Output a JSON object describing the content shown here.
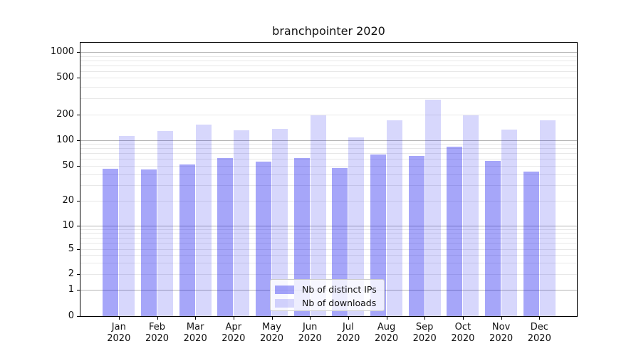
{
  "title": "branchpointer 2020",
  "chart_data": {
    "type": "bar",
    "title": "branchpointer 2020",
    "categories": [
      "Jan 2020",
      "Feb 2020",
      "Mar 2020",
      "Apr 2020",
      "May 2020",
      "Jun 2020",
      "Jul 2020",
      "Aug 2020",
      "Sep 2020",
      "Oct 2020",
      "Nov 2020",
      "Dec 2020"
    ],
    "month_labels": [
      "Jan",
      "Feb",
      "Mar",
      "Apr",
      "May",
      "Jun",
      "Jul",
      "Aug",
      "Sep",
      "Oct",
      "Nov",
      "Dec"
    ],
    "year_label": "2020",
    "series": [
      {
        "name": "Nb of distinct IPs",
        "color": "#a6a6f6",
        "values": [
          46,
          45,
          52,
          62,
          56,
          62,
          47,
          68,
          65,
          84,
          57,
          43
        ]
      },
      {
        "name": "Nb of downloads",
        "color": "#d9d9fb",
        "values": [
          112,
          127,
          152,
          131,
          136,
          195,
          107,
          171,
          290,
          195,
          134,
          170
        ]
      }
    ],
    "xlabel": "",
    "ylabel": "",
    "yscale": "symlog",
    "y_tick_labels": [
      "0",
      "1",
      "2",
      "5",
      "10",
      "20",
      "50",
      "100",
      "200",
      "500",
      "1000"
    ],
    "y_ticks": [
      0,
      1,
      2,
      5,
      10,
      20,
      50,
      100,
      200,
      500,
      1000
    ],
    "ylim": [
      0,
      1300
    ],
    "grid": "horizontal major+minor",
    "legend_position": "lower center",
    "colors": {
      "major_grid": "#b3b3b3",
      "minor_grid": "#e8e8e8",
      "axis": "#000000",
      "legend_border": "#cccccc"
    }
  }
}
